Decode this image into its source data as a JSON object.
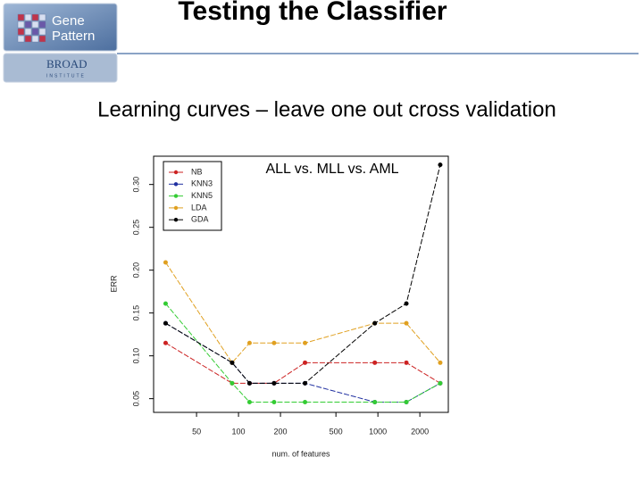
{
  "header": {
    "logo_name_1": "Gene",
    "logo_name_2": "Pattern",
    "logo_org": "BROAD",
    "logo_org_sub": "INSTITUTE",
    "title": "Testing the Classifier"
  },
  "subtitle": "Learning curves – leave one out cross validation",
  "chart_data": {
    "type": "line",
    "title": "ALL vs. MLL vs. AML",
    "x_label": "num. of features",
    "y_label": "ERR",
    "x": [
      30,
      90,
      120,
      180,
      300,
      950,
      1600,
      2800
    ],
    "series": [
      {
        "name": "NB",
        "color": "#cc2222",
        "values": [
          0.115,
          0.068,
          0.068,
          0.068,
          0.092,
          0.092,
          0.092,
          0.068
        ]
      },
      {
        "name": "KNN3",
        "color": "#1f2fa0",
        "values": [
          0.138,
          0.092,
          0.068,
          0.068,
          0.068,
          0.046,
          0.046,
          0.068
        ]
      },
      {
        "name": "KNN5",
        "color": "#33cc33",
        "values": [
          0.161,
          0.068,
          0.046,
          0.046,
          0.046,
          0.046,
          0.046,
          0.068
        ]
      },
      {
        "name": "LDA",
        "color": "#e0a020",
        "values": [
          0.209,
          0.092,
          0.115,
          0.115,
          0.115,
          0.138,
          0.138,
          0.092
        ]
      },
      {
        "name": "GDA",
        "color": "#000000",
        "values": [
          0.138,
          0.092,
          0.068,
          0.068,
          0.068,
          0.138,
          0.161,
          0.323
        ]
      }
    ],
    "xscale": "log",
    "xlim": [
      24.6,
      3200
    ],
    "ylim": [
      0.034,
      0.333
    ],
    "xticks": [
      50,
      100,
      200,
      500,
      1000,
      2000
    ],
    "yticks": [
      0.05,
      {
        "value": 0.1,
        "label": "0.10"
      },
      0.15,
      {
        "value": 0.2,
        "label": "0.20"
      },
      0.25,
      {
        "value": 0.3,
        "label": "0.30"
      }
    ],
    "legend": "top-left"
  }
}
